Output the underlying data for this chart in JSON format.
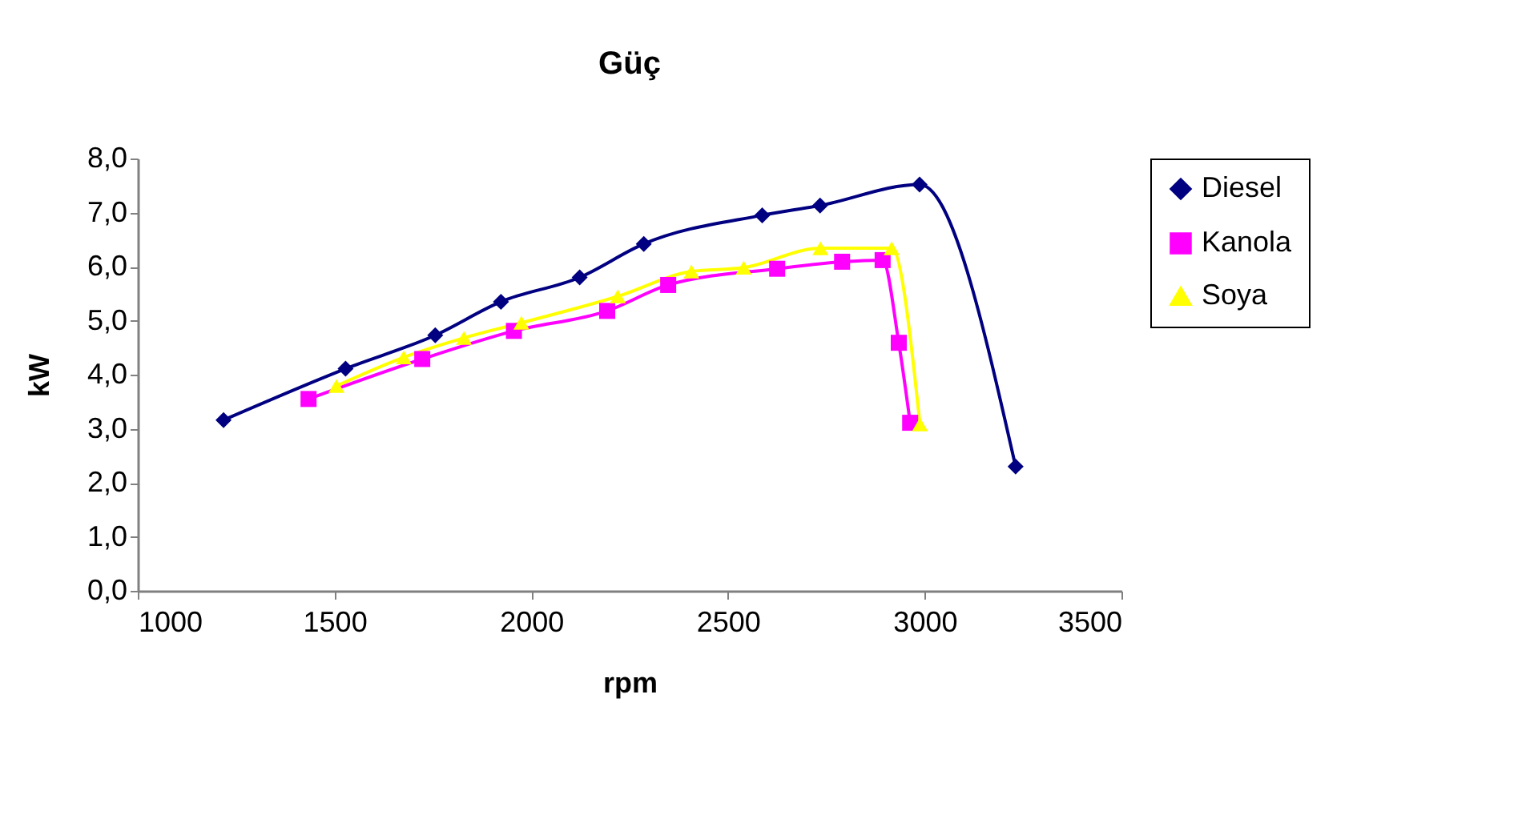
{
  "chart_data": {
    "type": "line",
    "title": "Güç",
    "xlabel": "rpm",
    "ylabel": "kW",
    "xlim": [
      1000,
      3500
    ],
    "xticks": [
      1000,
      1500,
      2000,
      2500,
      3000,
      3500
    ],
    "ylim": [
      0,
      8
    ],
    "yticks": [
      {
        "value": 0,
        "label": "0,0"
      },
      {
        "value": 1,
        "label": "1,0"
      },
      {
        "value": 2,
        "label": "2,0"
      },
      {
        "value": 3,
        "label": "3,0"
      },
      {
        "value": 4,
        "label": "4,0"
      },
      {
        "value": 5,
        "label": "5,0"
      },
      {
        "value": 6,
        "label": "6,0"
      },
      {
        "value": 7,
        "label": "7,0"
      },
      {
        "value": 8,
        "label": "8,0"
      }
    ],
    "grid": false,
    "legend": "right",
    "series": [
      {
        "name": "Diesel",
        "color": "#000080",
        "marker": "diamond",
        "x": [
          1218,
          1528,
          1756,
          1923,
          2123,
          2286,
          2587,
          2734,
          2987,
          3231
        ],
        "values": [
          3.16,
          4.11,
          4.73,
          5.35,
          5.8,
          6.42,
          6.95,
          7.13,
          7.52,
          2.3
        ]
      },
      {
        "name": "Kanola",
        "color": "#ff00ff",
        "marker": "square",
        "x": [
          1434,
          1723,
          1956,
          2193,
          2348,
          2625,
          2790,
          2893,
          2934,
          2963
        ],
        "values": [
          3.55,
          4.29,
          4.81,
          5.18,
          5.66,
          5.96,
          6.09,
          6.12,
          4.59,
          3.11
        ]
      },
      {
        "name": "Soya",
        "color": "#ffff00",
        "marker": "triangle",
        "x": [
          1505,
          1676,
          1829,
          1975,
          2220,
          2407,
          2540,
          2735,
          2916,
          2988
        ],
        "values": [
          3.79,
          4.32,
          4.68,
          4.96,
          5.45,
          5.91,
          5.98,
          6.34,
          6.34,
          3.08
        ]
      }
    ]
  }
}
